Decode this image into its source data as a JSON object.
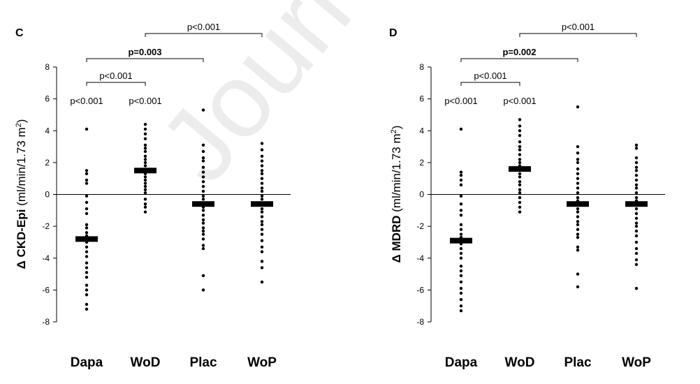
{
  "watermark": "Journal Pre",
  "chart_data": [
    {
      "panel": "C",
      "type": "scatter",
      "ylabel_prefix": "Δ CKD-Epi",
      "ylabel_units": "(ml/min/1.73 m",
      "ylabel_sup": "2",
      "ylabel_close": ")",
      "categories": [
        "Dapa",
        "WoD",
        "Plac",
        "WoP"
      ],
      "ylim": [
        -8,
        8
      ],
      "yticks": [
        8,
        6,
        4,
        2,
        0,
        -2,
        -4,
        -6,
        -8
      ],
      "means": [
        -2.8,
        1.5,
        -0.6,
        -0.6
      ],
      "points": [
        [
          4.1,
          1.5,
          1.3,
          0.9,
          0.7,
          -0.1,
          -0.5,
          -0.9,
          -1.2,
          -1.9,
          -2.1,
          -2.4,
          -2.6,
          -2.7,
          -3.0,
          -3.3,
          -3.6,
          -3.9,
          -4.3,
          -4.6,
          -4.9,
          -5.2,
          -5.7,
          -6.0,
          -6.3,
          -6.9,
          -7.2
        ],
        [
          4.4,
          4.1,
          3.8,
          3.5,
          3.1,
          2.9,
          2.7,
          2.4,
          2.2,
          2.0,
          1.8,
          1.3,
          1.1,
          0.9,
          0.7,
          0.5,
          0.3,
          0.1,
          -0.3,
          -0.6,
          -0.8,
          -1.1
        ],
        [
          5.3,
          3.1,
          2.7,
          2.3,
          2.1,
          1.7,
          1.4,
          1.1,
          0.8,
          0.5,
          0.2,
          -0.1,
          -0.3,
          -0.8,
          -1.0,
          -1.3,
          -1.6,
          -1.8,
          -2.1,
          -2.3,
          -2.5,
          -2.8,
          -3.2,
          -3.4,
          -5.1,
          -6.0
        ],
        [
          3.2,
          2.8,
          2.4,
          2.1,
          1.8,
          1.5,
          1.3,
          1.0,
          0.7,
          0.4,
          0.2,
          -0.1,
          -0.3,
          -0.9,
          -1.1,
          -1.4,
          -1.7,
          -1.9,
          -2.2,
          -2.5,
          -2.9,
          -3.3,
          -3.6,
          -4.2,
          -4.6,
          -5.5
        ]
      ],
      "annotations": [
        {
          "text": "p<0.001",
          "type": "label",
          "cat": 0
        },
        {
          "text": "p<0.001",
          "type": "label",
          "cat": 1
        },
        {
          "text": "p<0.001",
          "type": "bracket",
          "from": 0,
          "to": 1,
          "bold": false
        },
        {
          "text": "p=0.003",
          "type": "bracket",
          "from": 0,
          "to": 2,
          "bold": true
        },
        {
          "text": "p<0.001",
          "type": "bracket",
          "from": 1,
          "to": 3,
          "bold": false
        }
      ]
    },
    {
      "panel": "D",
      "type": "scatter",
      "ylabel_prefix": "Δ MDRD",
      "ylabel_units": "(ml/min/1.73 m",
      "ylabel_sup": "2",
      "ylabel_close": ")",
      "categories": [
        "Dapa",
        "WoD",
        "Plac",
        "WoP"
      ],
      "ylim": [
        -8,
        8
      ],
      "yticks": [
        8,
        6,
        4,
        2,
        0,
        -2,
        -4,
        -6,
        -8
      ],
      "means": [
        -2.9,
        1.6,
        -0.6,
        -0.6
      ],
      "points": [
        [
          4.1,
          1.4,
          1.2,
          0.9,
          0.6,
          -0.1,
          -0.6,
          -1.0,
          -1.3,
          -1.9,
          -2.2,
          -2.5,
          -2.7,
          -3.1,
          -3.4,
          -3.7,
          -4.0,
          -4.5,
          -4.8,
          -5.1,
          -5.5,
          -5.9,
          -6.2,
          -6.6,
          -7.0,
          -7.3
        ],
        [
          4.7,
          4.3,
          4.0,
          3.7,
          3.3,
          3.0,
          2.8,
          2.5,
          2.2,
          2.0,
          1.8,
          1.3,
          1.1,
          0.8,
          0.6,
          0.3,
          0.1,
          -0.2,
          -0.5,
          -0.8,
          -1.1
        ],
        [
          5.5,
          3.0,
          2.6,
          2.2,
          2.0,
          1.6,
          1.3,
          1.0,
          0.7,
          0.4,
          0.1,
          -0.2,
          -0.4,
          -0.9,
          -1.1,
          -1.4,
          -1.7,
          -1.9,
          -2.2,
          -2.5,
          -2.7,
          -3.3,
          -3.5,
          -5.0,
          -5.8
        ],
        [
          3.1,
          2.9,
          2.3,
          2.0,
          1.7,
          1.5,
          1.2,
          0.9,
          0.6,
          0.4,
          0.1,
          -0.2,
          -0.4,
          -0.9,
          -1.2,
          -1.5,
          -1.8,
          -2.0,
          -2.3,
          -2.6,
          -3.0,
          -3.4,
          -3.7,
          -4.1,
          -4.4,
          -5.9
        ]
      ],
      "annotations": [
        {
          "text": "p<0.001",
          "type": "label",
          "cat": 0
        },
        {
          "text": "p<0.001",
          "type": "label",
          "cat": 1
        },
        {
          "text": "p<0.001",
          "type": "bracket",
          "from": 0,
          "to": 1,
          "bold": false
        },
        {
          "text": "p=0.002",
          "type": "bracket",
          "from": 0,
          "to": 2,
          "bold": true
        },
        {
          "text": "p<0.001",
          "type": "bracket",
          "from": 1,
          "to": 3,
          "bold": false
        }
      ]
    }
  ]
}
